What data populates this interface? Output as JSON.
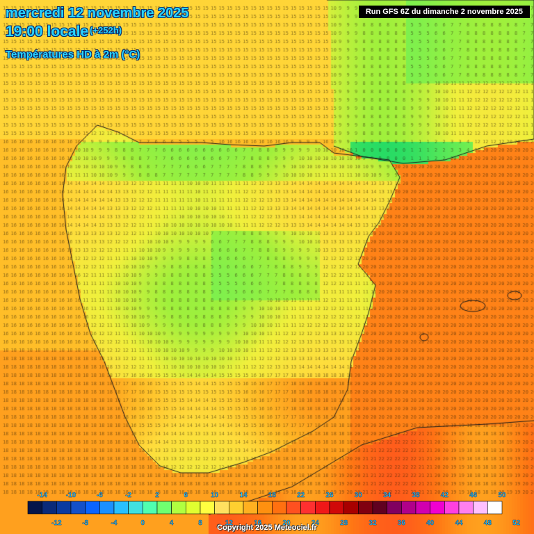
{
  "header": {
    "date": "mercredi 12 novembre 2025",
    "time": "19:00 locale",
    "lead": "(+252h)",
    "parameter": "Températures HD à 2m (°C)"
  },
  "run_info": "Run GFS 6Z du dimanche 2 novembre 2025",
  "copyright": "Copyright 2025 Meteociel.fr",
  "legend": {
    "top_labels": [
      "-14",
      "-10",
      "-6",
      "-2",
      "2",
      "6",
      "10",
      "14",
      "18",
      "22",
      "26",
      "30",
      "34",
      "38",
      "42",
      "46",
      "50"
    ],
    "bottom_labels": [
      "-12",
      "-8",
      "-4",
      "0",
      "4",
      "8",
      "12",
      "16",
      "20",
      "24",
      "28",
      "32",
      "36",
      "40",
      "44",
      "48",
      "52"
    ],
    "colors": [
      "#04154a",
      "#0a2a7a",
      "#0a3aa0",
      "#1450c8",
      "#0a64ff",
      "#1a90ff",
      "#28c0ff",
      "#40e0e0",
      "#50ffb0",
      "#70ff70",
      "#b0ff40",
      "#e0ff30",
      "#ffff40",
      "#ffe060",
      "#ffd030",
      "#ffb020",
      "#ff9010",
      "#ff7010",
      "#ff5020",
      "#ff3030",
      "#f01818",
      "#d00808",
      "#a80000",
      "#800010",
      "#600020",
      "#800060",
      "#b0008a",
      "#d000b0",
      "#f000d0",
      "#ff40e0",
      "#ff80f0",
      "#ffc0ff",
      "#ffffff"
    ]
  },
  "colors": {
    "text_blue": "#29d4ff",
    "border": "#1a1a1a"
  }
}
